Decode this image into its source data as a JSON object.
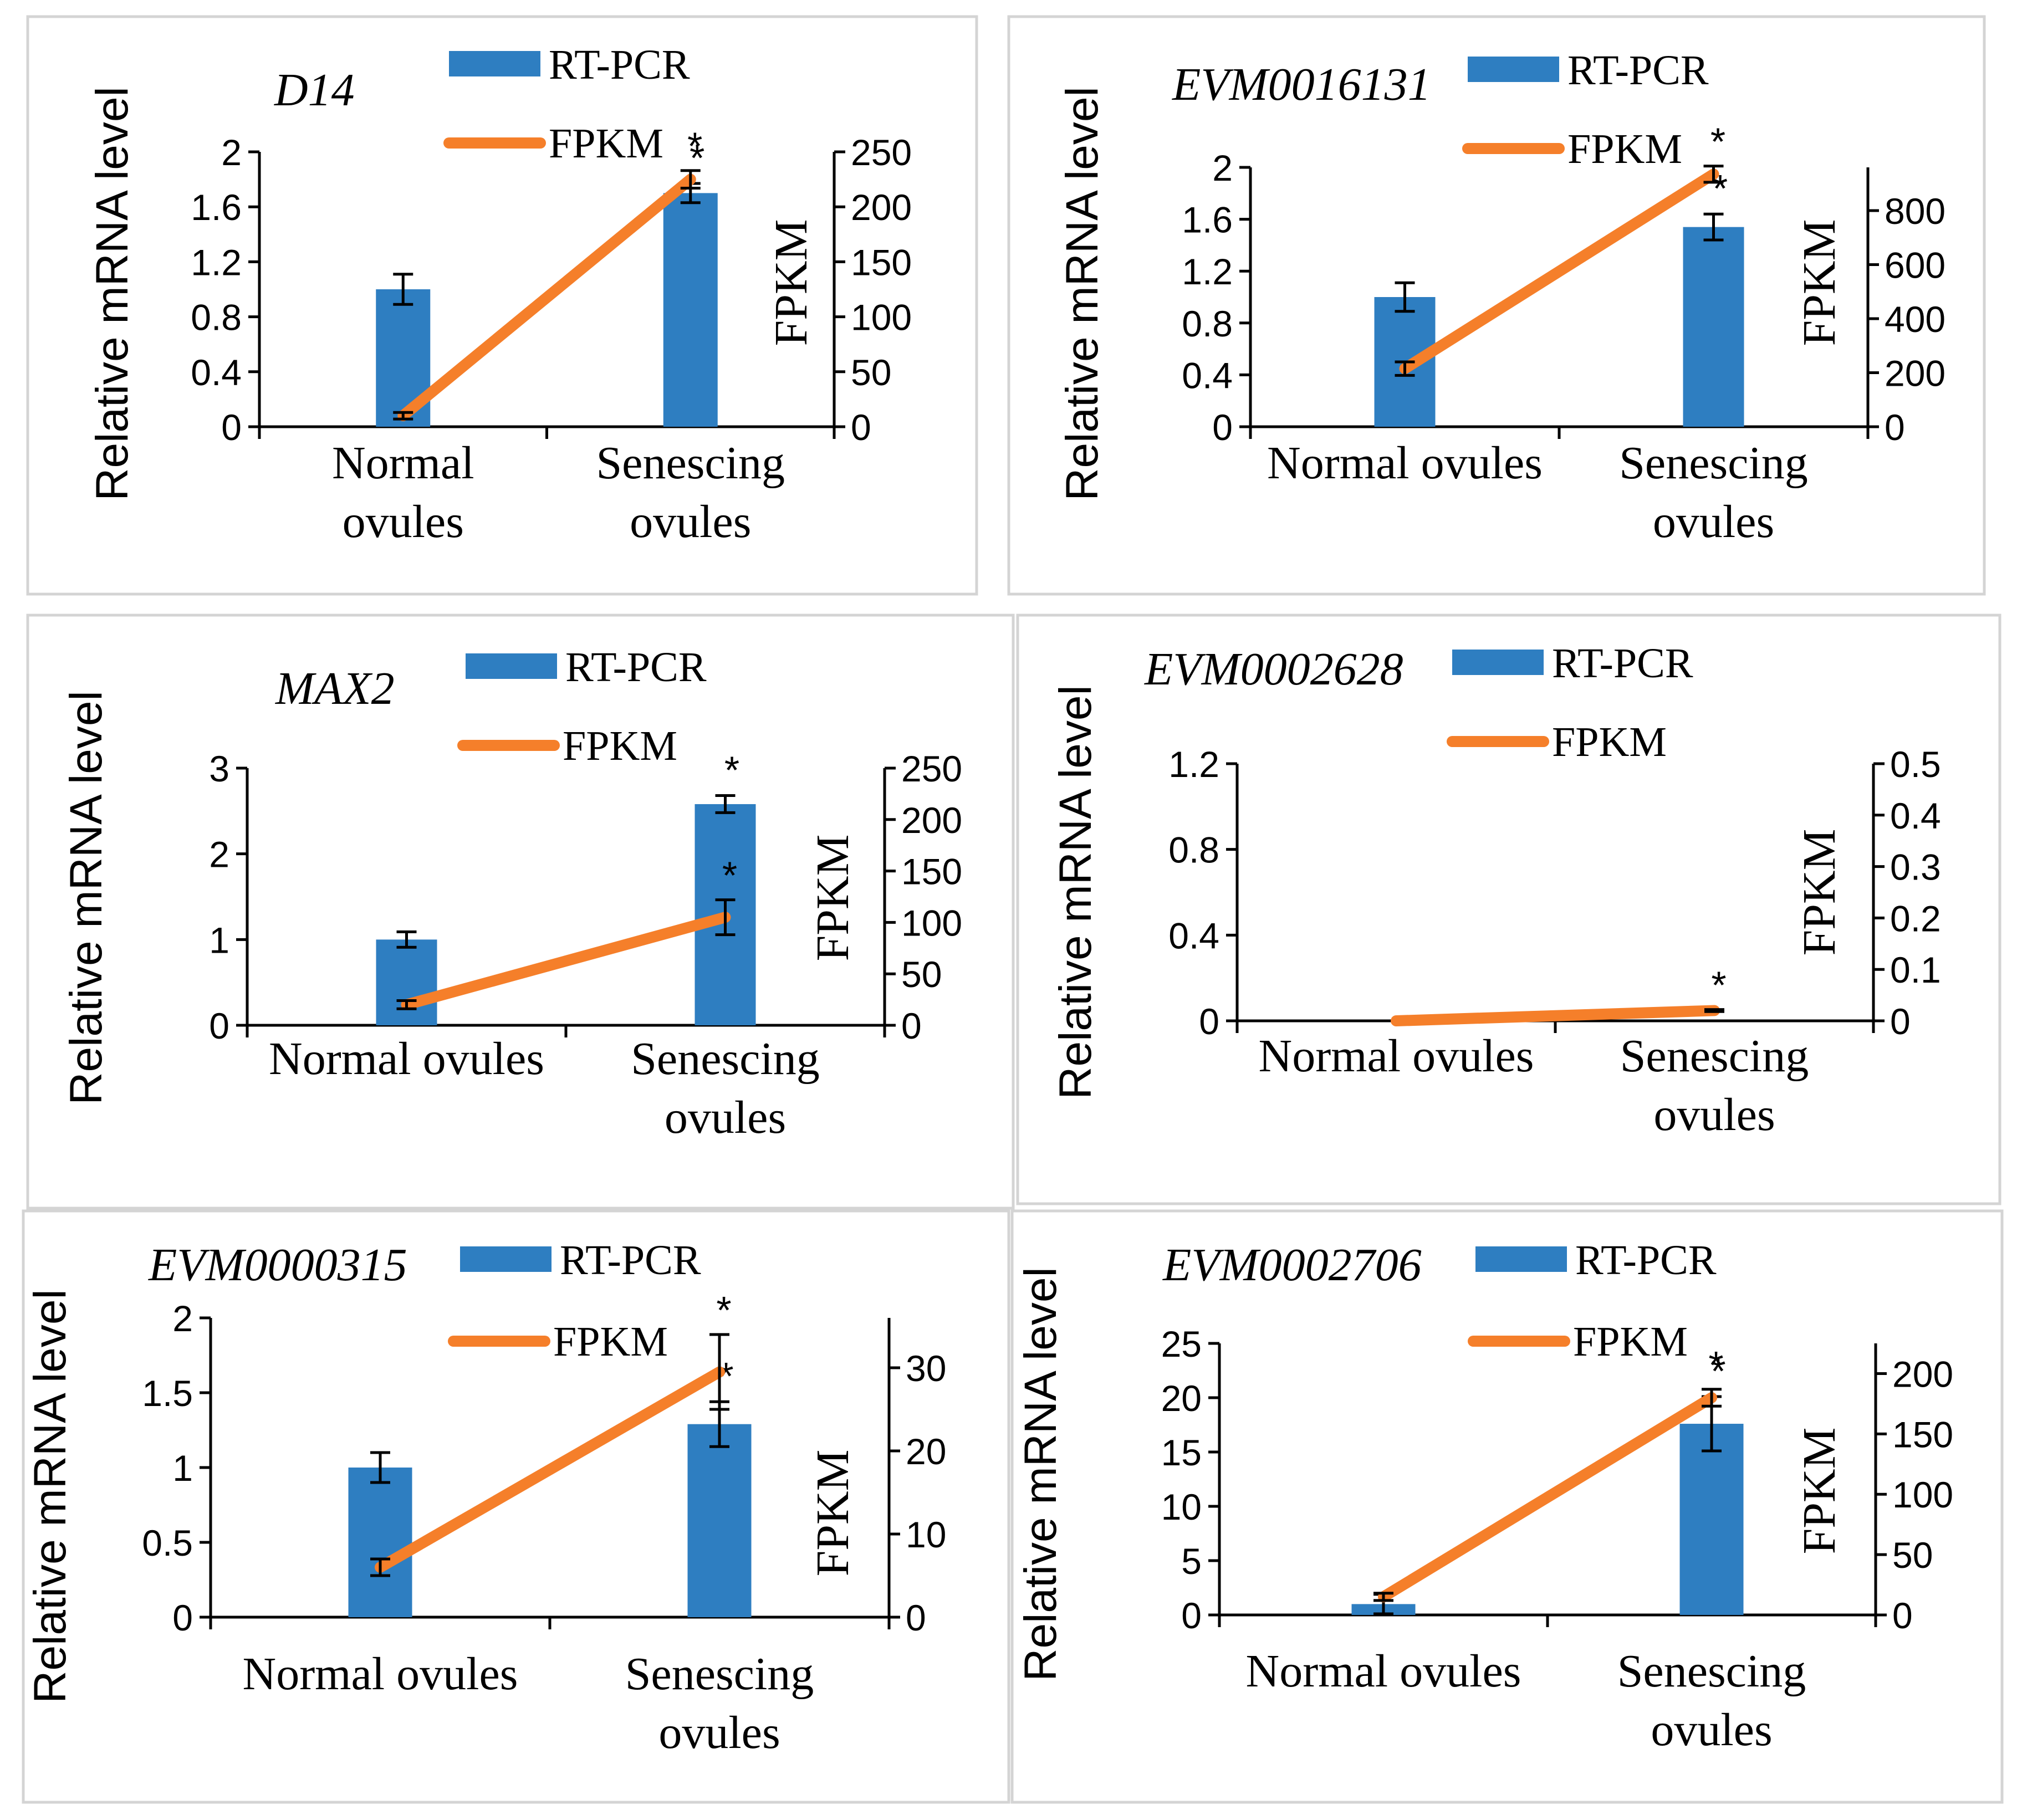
{
  "figure": {
    "legend_bar_label": "RT-PCR",
    "legend_line_label": "FPKM",
    "significance_marker": "*",
    "colors": {
      "bar": "#2e7ec1",
      "line": "#f57f2a",
      "axis": "#000000",
      "text": "#000000",
      "panel_border": "#d4d4d4"
    }
  },
  "chart_data": [
    {
      "type": "bar+line",
      "title": "D14",
      "ylabel": "Relative mRNA level",
      "y2label": "FPKM",
      "categories": [
        [
          "Normal",
          "ovules"
        ],
        [
          "Senescing",
          "ovules"
        ]
      ],
      "yticks": [
        "0",
        "0.4",
        "0.8",
        "1.2",
        "1.6",
        "2"
      ],
      "ylim": [
        0,
        2
      ],
      "y2ticks": [
        "0",
        "50",
        "100",
        "150",
        "200",
        "250"
      ],
      "y2lim": [
        0,
        250
      ],
      "series": [
        {
          "name": "RT-PCR",
          "kind": "bar",
          "axis": "left",
          "values": [
            1.0,
            1.7
          ],
          "errors": [
            0.11,
            0.07
          ],
          "significant": [
            false,
            true
          ]
        },
        {
          "name": "FPKM",
          "kind": "line",
          "axis": "right",
          "values": [
            10,
            225
          ],
          "errors": [
            3,
            8
          ],
          "significant": [
            false,
            true
          ]
        }
      ]
    },
    {
      "type": "bar+line",
      "title": "EVM0016131",
      "ylabel": "Relative mRNA level",
      "y2label": "FPKM",
      "categories": [
        [
          "Normal ovules"
        ],
        [
          "Senescing",
          "ovules"
        ]
      ],
      "yticks": [
        "0",
        "0.4",
        "0.8",
        "1.2",
        "1.6",
        "2"
      ],
      "ylim": [
        0,
        2
      ],
      "y2ticks": [
        "0",
        "200",
        "400",
        "600",
        "800"
      ],
      "y2lim": [
        0,
        960
      ],
      "series": [
        {
          "name": "RT-PCR",
          "kind": "bar",
          "axis": "left",
          "values": [
            1.0,
            1.54
          ],
          "errors": [
            0.11,
            0.1
          ],
          "significant": [
            false,
            true
          ]
        },
        {
          "name": "FPKM",
          "kind": "line",
          "axis": "right",
          "values": [
            215,
            935
          ],
          "errors": [
            25,
            30
          ],
          "significant": [
            false,
            true
          ]
        }
      ]
    },
    {
      "type": "bar+line",
      "title": "MAX2",
      "ylabel": "Relative mRNA level",
      "y2label": "FPKM",
      "categories": [
        [
          "Normal ovules"
        ],
        [
          "Senescing",
          "ovules"
        ]
      ],
      "yticks": [
        "0",
        "1",
        "2",
        "3"
      ],
      "ylim": [
        0,
        3
      ],
      "y2ticks": [
        "0",
        "50",
        "100",
        "150",
        "200",
        "250"
      ],
      "y2lim": [
        0,
        250
      ],
      "series": [
        {
          "name": "RT-PCR",
          "kind": "bar",
          "axis": "left",
          "values": [
            1.0,
            2.58
          ],
          "errors": [
            0.09,
            0.1
          ],
          "significant": [
            false,
            true
          ]
        },
        {
          "name": "FPKM",
          "kind": "line",
          "axis": "right",
          "values": [
            20,
            105
          ],
          "errors": [
            4,
            17
          ],
          "significant": [
            false,
            true
          ]
        }
      ]
    },
    {
      "type": "bar+line",
      "title": "EVM0002628",
      "ylabel": "Relative mRNA level",
      "y2label": "FPKM",
      "categories": [
        [
          "Normal ovules"
        ],
        [
          "Senescing",
          "ovules"
        ]
      ],
      "yticks": [
        "0",
        "0.4",
        "0.8",
        "1.2"
      ],
      "ylim": [
        0,
        1.2
      ],
      "y2ticks": [
        "0",
        "0.1",
        "0.2",
        "0.3",
        "0.4",
        "0.5"
      ],
      "y2lim": [
        0,
        0.5
      ],
      "series": [
        {
          "name": "RT-PCR",
          "kind": "bar",
          "axis": "left",
          "values": [
            0,
            0
          ],
          "errors": [
            0,
            0
          ],
          "significant": [
            false,
            false
          ]
        },
        {
          "name": "FPKM",
          "kind": "line",
          "axis": "right",
          "values": [
            0,
            0.02
          ],
          "errors": [
            0,
            0.002
          ],
          "significant": [
            false,
            true
          ]
        }
      ]
    },
    {
      "type": "bar+line",
      "title": "EVM0000315",
      "ylabel": "Relative mRNA level",
      "y2label": "FPKM",
      "categories": [
        [
          "Normal ovules"
        ],
        [
          "Senescing",
          "ovules"
        ]
      ],
      "yticks": [
        "0",
        "0.5",
        "1",
        "1.5",
        "2"
      ],
      "ylim": [
        0,
        2
      ],
      "y2ticks": [
        "0",
        "10",
        "20",
        "30"
      ],
      "y2lim": [
        0,
        36
      ],
      "series": [
        {
          "name": "RT-PCR",
          "kind": "bar",
          "axis": "left",
          "values": [
            1.0,
            1.29
          ],
          "errors": [
            0.1,
            0.15
          ],
          "significant": [
            false,
            true
          ]
        },
        {
          "name": "FPKM",
          "kind": "line",
          "axis": "right",
          "values": [
            6,
            29.5
          ],
          "errors": [
            1,
            4.5
          ],
          "significant": [
            false,
            true
          ]
        }
      ]
    },
    {
      "type": "bar+line",
      "title": "EVM0002706",
      "ylabel": "Relative mRNA level",
      "y2label": "FPKM",
      "categories": [
        [
          "Normal ovules"
        ],
        [
          "Senescing",
          "ovules"
        ]
      ],
      "yticks": [
        "0",
        "5",
        "10",
        "15",
        "20",
        "25"
      ],
      "ylim": [
        0,
        25
      ],
      "y2ticks": [
        "0",
        "50",
        "100",
        "150",
        "200"
      ],
      "y2lim": [
        0,
        225
      ],
      "series": [
        {
          "name": "RT-PCR",
          "kind": "bar",
          "axis": "left",
          "values": [
            1.0,
            17.6
          ],
          "errors": [
            0.9,
            2.5
          ],
          "significant": [
            false,
            true
          ]
        },
        {
          "name": "FPKM",
          "kind": "line",
          "axis": "right",
          "values": [
            15,
            180
          ],
          "errors": [
            3,
            7
          ],
          "significant": [
            false,
            true
          ]
        }
      ]
    }
  ]
}
